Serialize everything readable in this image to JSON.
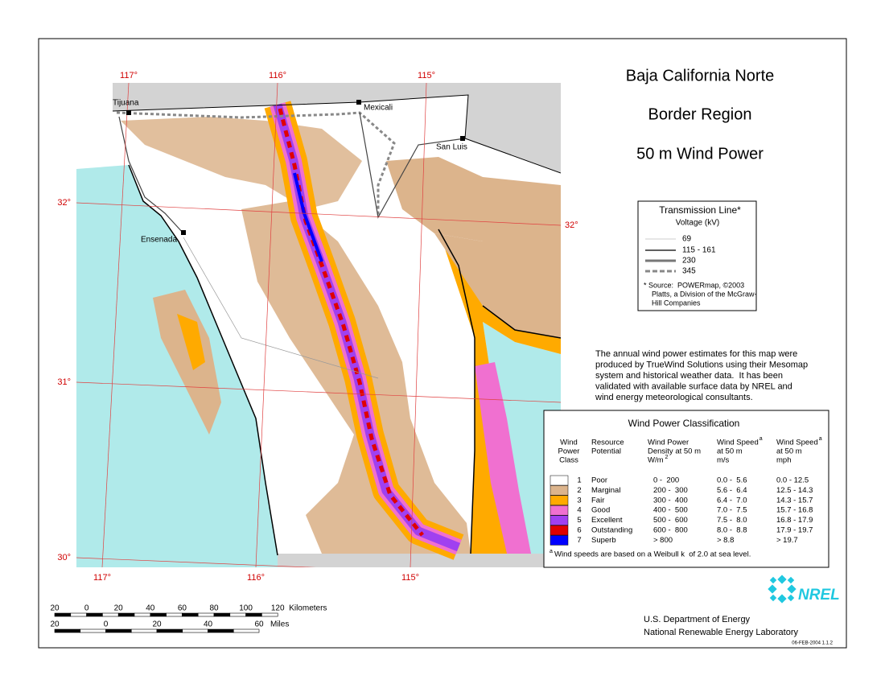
{
  "title": [
    "Baja California Norte",
    "Border Region",
    "50 m Wind Power"
  ],
  "map": {
    "longitude_labels_top": [
      "117°",
      "116°",
      "115°"
    ],
    "longitude_labels_bottom": [
      "117°",
      "116°",
      "115°"
    ],
    "latitude_labels_left": [
      "32°",
      "31°",
      "30°"
    ],
    "latitude_labels_right": [
      "32°"
    ],
    "cities": [
      "Tijuana",
      "Mexicali",
      "San Luis",
      "Ensenada"
    ]
  },
  "transmission_legend": {
    "title": "Transmission Line*",
    "subtitle": "Voltage (kV)",
    "items": [
      "69",
      "115 - 161",
      "230",
      "345"
    ],
    "source": [
      "* Source:  POWERmap, ©2003",
      "Platts, a Division of the McGraw-",
      "Hill Companies"
    ]
  },
  "description": [
    "The annual wind power estimates for this map were",
    "produced by TrueWind Solutions using their Mesomap",
    "system and historical weather data.  It has been",
    "validated with available surface data by NREL and",
    "wind energy meteorological consultants."
  ],
  "classification": {
    "title": "Wind Power Classification",
    "headers": [
      [
        "Wind",
        "Power",
        "Class"
      ],
      [
        "Resource",
        "Potential"
      ],
      [
        "Wind Power",
        "Density at 50 m",
        "W/m"
      ],
      [
        "Wind Speed",
        "at 50 m",
        "m/s"
      ],
      [
        "Wind Speed",
        "at 50 m",
        "mph"
      ]
    ],
    "density_unit_superscript": "2",
    "speed_superscript": "a",
    "rows": [
      [
        "1",
        "Poor",
        "0 -  200",
        "0.0 -  5.6",
        "0.0 - 12.5"
      ],
      [
        "2",
        "Marginal",
        "200 -  300",
        "5.6 -  6.4",
        "12.5 - 14.3"
      ],
      [
        "3",
        "Fair",
        "300 -  400",
        "6.4 -  7.0",
        "14.3 - 15.7"
      ],
      [
        "4",
        "Good",
        "400 -  500",
        "7.0 -  7.5",
        "15.7 - 16.8"
      ],
      [
        "5",
        "Excellent",
        "500 -  600",
        "7.5 -  8.0",
        "16.8 - 17.9"
      ],
      [
        "6",
        "Outstanding",
        "600 -  800",
        "8.0 -  8.8",
        "17.9 - 19.7"
      ],
      [
        "7",
        "Superb",
        "> 800",
        "> 8.8",
        "> 19.7"
      ]
    ],
    "colors": [
      "#ffffff",
      "#dcb48c",
      "#ffaa00",
      "#f070d0",
      "#a040f0",
      "#e00000",
      "#0000ff"
    ],
    "footnote_marker": "a",
    "footnote": "Wind speeds are based on a Weibull k  of 2.0 at sea level."
  },
  "scale": {
    "kilometers": [
      "20",
      "0",
      "20",
      "40",
      "60",
      "80",
      "100",
      "120"
    ],
    "kilometers_label": "Kilometers",
    "miles": [
      "20",
      "0",
      "20",
      "40",
      "60"
    ],
    "miles_label": "Miles"
  },
  "logo": "NREL",
  "footer": [
    "U.S. Department of Energy",
    "National Renewable Energy Laboratory"
  ],
  "code": "06-FEB-2004 1.1.2"
}
